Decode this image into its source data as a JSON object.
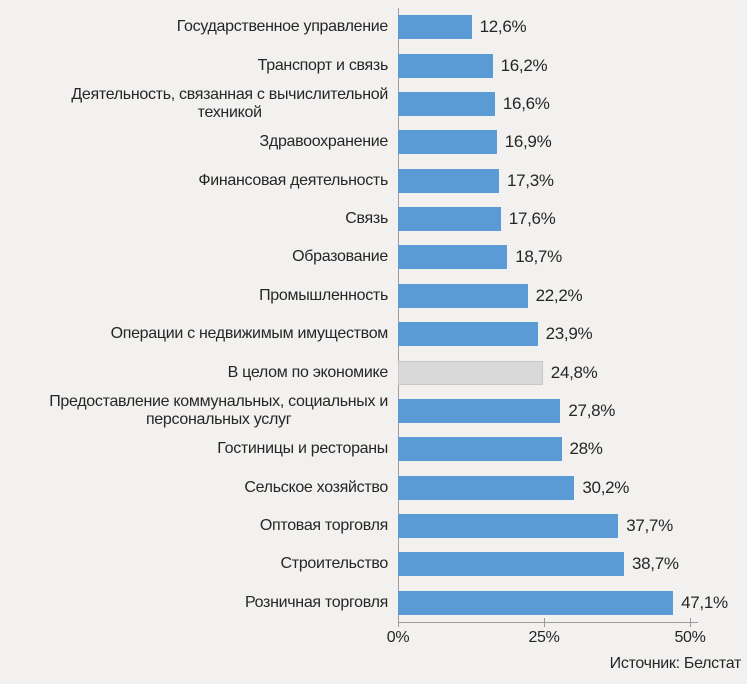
{
  "chart_data": {
    "type": "bar",
    "orientation": "horizontal",
    "title": "",
    "categories": [
      "Государственное управление",
      "Транспорт и связь",
      "Деятельность, связанная с вычислительной\nтехникой",
      "Здравоохранение",
      "Финансовая деятельность",
      "Связь",
      "Образование",
      "Промышленность",
      "Операции с недвижимым имуществом",
      "В целом по экономике",
      "Предоставление коммунальных, социальных и\nперсональных услуг",
      "Гостиницы и рестораны",
      "Сельское хозяйство",
      "Оптовая торговля",
      "Строительство",
      "Розничная торговля"
    ],
    "values": [
      12.6,
      16.2,
      16.6,
      16.9,
      17.3,
      17.6,
      18.7,
      22.2,
      23.9,
      24.8,
      27.8,
      28,
      30.2,
      37.7,
      38.7,
      47.1
    ],
    "value_labels": [
      "12,6%",
      "16,2%",
      "16,6%",
      "16,9%",
      "17,3%",
      "17,6%",
      "18,7%",
      "22,2%",
      "23,9%",
      "24,8%",
      "27,8%",
      "28%",
      "30,2%",
      "37,7%",
      "38,7%",
      "47,1%"
    ],
    "xlim": [
      0,
      50
    ],
    "x_tick_values": [
      0,
      25,
      50
    ],
    "x_tick_labels": [
      "0%",
      "25%",
      "50%"
    ],
    "highlight_index": 9,
    "highlight_category": "В целом по экономике",
    "grid": "off",
    "legend": "none",
    "source_note": "Источник: Белстат",
    "colors": {
      "bar": "#5b9bd5",
      "highlight_bar": "#d9d9d9",
      "highlight_bar_border": "#c9c8c6",
      "axis": "#9b9b9b",
      "text": "#262626",
      "background": "#f2f1ef"
    }
  }
}
